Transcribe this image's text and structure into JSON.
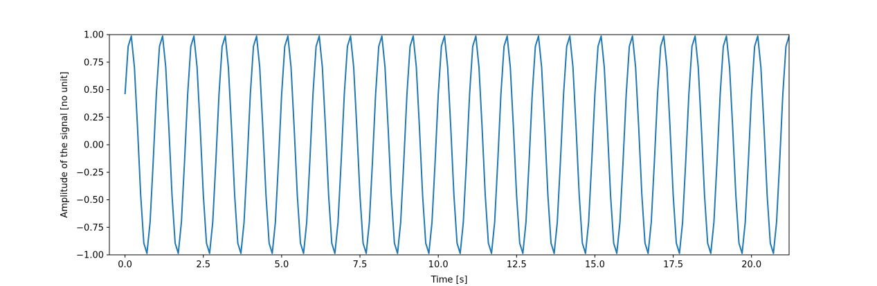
{
  "chart_data": {
    "type": "line",
    "title": "",
    "xlabel": "Time [s]",
    "ylabel": "Amplitude of the signal [no unit]",
    "xlim": [
      -0.5,
      21.2
    ],
    "ylim": [
      -1.0,
      1.0
    ],
    "grid": false,
    "line_color": "#1f77b4",
    "x_ticks": [
      0.0,
      2.5,
      5.0,
      7.5,
      10.0,
      12.5,
      15.0,
      17.5,
      20.0
    ],
    "x_tick_labels": [
      "0.0",
      "2.5",
      "5.0",
      "7.5",
      "10.0",
      "12.5",
      "15.0",
      "17.5",
      "20.0"
    ],
    "y_ticks": [
      -1.0,
      -0.75,
      -0.5,
      -0.25,
      0.0,
      0.25,
      0.5,
      0.75,
      1.0
    ],
    "y_tick_labels": [
      "−1.00",
      "−0.75",
      "−0.50",
      "−0.25",
      "0.00",
      "0.25",
      "0.50",
      "0.75",
      "1.00"
    ],
    "series": [
      {
        "frequency_hz": 1.0,
        "phase_rad": 0.4765,
        "x_start": 0.0,
        "x_end": 21.2,
        "x_step": 0.1
      }
    ]
  }
}
